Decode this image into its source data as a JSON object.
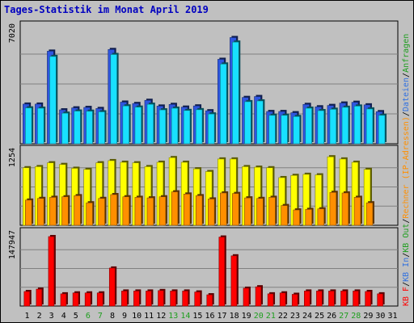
{
  "chart_data": {
    "type": "bar",
    "title": "Tages-Statistik im Monat April 2019",
    "categories": [
      "1",
      "2",
      "3",
      "4",
      "5",
      "6",
      "7",
      "8",
      "9",
      "10",
      "11",
      "12",
      "13",
      "14",
      "15",
      "16",
      "17",
      "18",
      "19",
      "20",
      "21",
      "22",
      "23",
      "24",
      "25",
      "26",
      "27",
      "28",
      "29",
      "30",
      "31"
    ],
    "weekend_categories": [
      "6",
      "7",
      "13",
      "14",
      "20",
      "21",
      "27",
      "28"
    ],
    "panels": [
      {
        "name": "top",
        "y_tick_label": "7020",
        "ylim": [
          0,
          7900
        ],
        "series": [
          {
            "name": "Anfragen",
            "color": "#2f56e0",
            "values": [
              2620,
              2620,
              6120,
              2240,
              2370,
              2400,
              2330,
              6230,
              2750,
              2660,
              2870,
              2490,
              2600,
              2420,
              2500,
              2180,
              5580,
              7020,
              3060,
              3120,
              2130,
              2130,
              2050,
              2600,
              2440,
              2530,
              2690,
              2740,
              2570,
              2120,
              0
            ]
          },
          {
            "name": "Dateien",
            "color": "#18e0ff",
            "values": [
              2370,
              2350,
              5770,
              2020,
              2160,
              2150,
              2110,
              5900,
              2500,
              2420,
              2610,
              2240,
              2350,
              2200,
              2250,
              1970,
              5270,
              6720,
              2780,
              2830,
              1880,
              1880,
              1800,
              2350,
              2190,
              2280,
              2410,
              2490,
              2300,
              1880,
              0
            ]
          }
        ]
      },
      {
        "name": "middle",
        "y_tick_label": "1254",
        "ylim": [
          0,
          1400
        ],
        "series": [
          {
            "name": "Rechner (IP-Adressen)",
            "color": "#ffff00",
            "values": [
              1050,
              1070,
              1140,
              1110,
              1040,
              1020,
              1140,
              1180,
              1150,
              1140,
              1070,
              1150,
              1235,
              1150,
              1030,
              980,
              1210,
              1210,
              1070,
              1060,
              1050,
              870,
              910,
              930,
              920,
              1250,
              1210,
              1150,
              1020,
              0,
              0
            ]
          },
          {
            "name": "KB Out",
            "color": "#ff8f00",
            "values": [
              460,
              490,
              510,
              520,
              540,
              410,
              490,
              560,
              520,
              510,
              500,
              520,
              610,
              570,
              540,
              480,
              590,
              580,
              500,
              490,
              510,
              360,
              280,
              290,
              300,
              600,
              590,
              510,
              410,
              0,
              0
            ]
          }
        ]
      },
      {
        "name": "bottom",
        "y_tick_label": "147947",
        "ylim": [
          0,
          160000
        ],
        "series": [
          {
            "name": "KB In",
            "color": "#2f56e0",
            "values": [
              0,
              0,
              0,
              0,
              0,
              0,
              0,
              0,
              0,
              0,
              0,
              0,
              0,
              0,
              0,
              0,
              0,
              0,
              0,
              0,
              0,
              0,
              0,
              0,
              0,
              0,
              0,
              0,
              0,
              0,
              0
            ]
          },
          {
            "name": "KB F",
            "color": "#ff0000",
            "values": [
              31000,
              36000,
              148000,
              26000,
              28000,
              28000,
              28000,
              81000,
              32000,
              32000,
              32000,
              33000,
              32000,
              32000,
              30000,
              24000,
              147000,
              107000,
              38000,
              41000,
              26000,
              28000,
              25000,
              32000,
              32000,
              32000,
              32000,
              32000,
              31000,
              26000,
              0
            ]
          }
        ]
      }
    ],
    "right_legend": [
      {
        "text": "KB F",
        "color": "#ff0000"
      },
      {
        "text": "/",
        "color": "#000000"
      },
      {
        "text": "KB In",
        "color": "#3070e0"
      },
      {
        "text": "/",
        "color": "#000000"
      },
      {
        "text": "KB Out",
        "color": "#1e9e1e"
      },
      {
        "text": "/",
        "color": "#000000"
      },
      {
        "text": "Rechner (IP-Adressen)",
        "color": "#ff8f00"
      },
      {
        "text": "/",
        "color": "#000000"
      },
      {
        "text": "Dateien",
        "color": "#3070e0"
      },
      {
        "text": "/",
        "color": "#000000"
      },
      {
        "text": "Anfragen",
        "color": "#1e9e1e"
      }
    ],
    "colors": {
      "background": "#c0c0c0",
      "title": "#0000c0",
      "weekend_label": "#1e9e1e",
      "grid": "#808080"
    }
  }
}
